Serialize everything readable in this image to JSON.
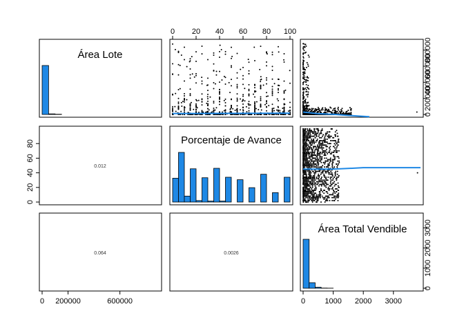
{
  "chart_data": {
    "type": "scatter",
    "variables": [
      "Área Lote",
      "Porcentaje de Avance",
      "Área Total Vendible"
    ],
    "diagonal_titles": [
      "Área Lote",
      "Porcentaje de Avance",
      "Área Total Vendible"
    ],
    "correlations": [
      {
        "row": 2,
        "col": 1,
        "label": "0.012"
      },
      {
        "row": 3,
        "col": 1,
        "label": "0.064"
      },
      {
        "row": 3,
        "col": 2,
        "label": "0.0026"
      }
    ],
    "axes": {
      "area_lote": {
        "range": [
          0,
          900000
        ],
        "ticks": [
          0,
          200000,
          600000
        ],
        "tick_labels": [
          "0",
          "200000",
          "600000"
        ],
        "right_ticks": [
          0,
          200000,
          400000,
          600000,
          800000
        ],
        "right_tick_labels": [
          "0",
          "200000",
          "400000",
          "600000",
          "800000"
        ]
      },
      "porcentaje": {
        "range": [
          0,
          100
        ],
        "ticks": [
          0,
          20,
          40,
          60,
          80,
          100
        ],
        "tick_labels": [
          "0",
          "20",
          "40",
          "60",
          "80",
          "100"
        ],
        "left_ticks": [
          0,
          20,
          40,
          60,
          80
        ],
        "left_tick_labels": [
          "0",
          "20",
          "40",
          "60",
          "80"
        ]
      },
      "area_total": {
        "range": [
          0,
          3900
        ],
        "ticks": [
          0,
          1000,
          2000,
          3000
        ],
        "tick_labels": [
          "0",
          "1000",
          "2000",
          "3000"
        ],
        "right_ticks": [
          0,
          1000,
          2000,
          3000
        ],
        "right_tick_labels": [
          "0",
          "1000",
          "2000",
          "3000"
        ]
      }
    },
    "histograms": {
      "area_lote": {
        "bin_edges": [
          0,
          50000,
          100000,
          150000,
          200000
        ],
        "values": [
          0.97,
          0.012,
          0.005,
          0
        ]
      },
      "porcentaje": {
        "bin_edges": [
          0,
          5,
          10,
          15,
          20,
          25,
          30,
          35,
          40,
          45,
          50,
          55,
          60,
          65,
          70,
          75,
          80,
          85,
          90,
          95,
          100
        ],
        "values": [
          0.48,
          1.0,
          0.12,
          0.67,
          0.03,
          0.49,
          0.02,
          0.68,
          0.02,
          0.5,
          0.0,
          0.45,
          0.0,
          0.29,
          0.0,
          0.56,
          0.0,
          0.19,
          0.0,
          0.5
        ]
      },
      "area_total": {
        "bin_edges": [
          0,
          200,
          400,
          600,
          800,
          1000
        ],
        "values": [
          2650,
          300,
          55,
          10,
          5
        ]
      }
    },
    "smooth_lines": {
      "area_lote_vs_porcentaje": [
        [
          0,
          12000
        ],
        [
          100,
          16000
        ]
      ],
      "area_lote_vs_area_total": [
        [
          0,
          30000
        ],
        [
          200,
          22000
        ],
        [
          500,
          10000
        ],
        [
          1000,
          2000
        ],
        [
          1500,
          -12000
        ],
        [
          2200,
          -28000
        ]
      ],
      "porcentaje_vs_area_total": [
        [
          0,
          45
        ],
        [
          1000,
          45
        ],
        [
          2000,
          47
        ],
        [
          3900,
          47
        ]
      ]
    },
    "colors": {
      "bars": "#1e88e5",
      "smooth": "#1e88e5",
      "points": "#000000"
    }
  }
}
